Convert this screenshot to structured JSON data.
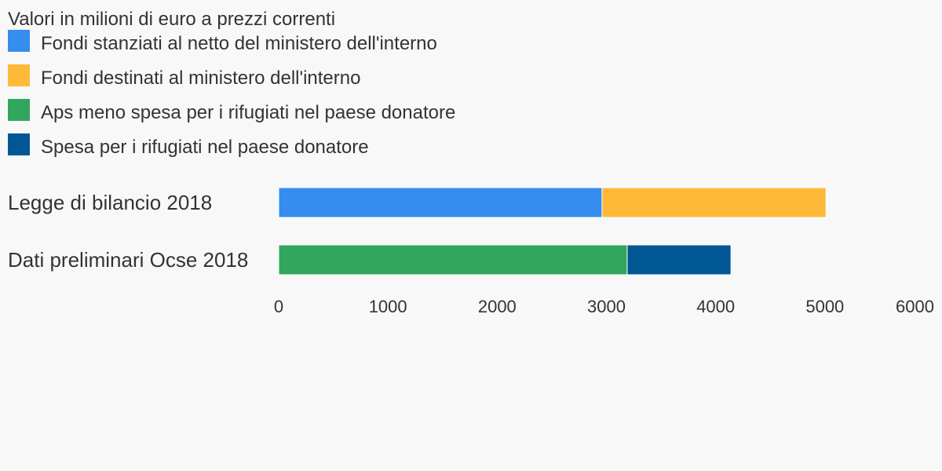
{
  "chart_data": {
    "type": "bar",
    "orientation": "horizontal",
    "stacked": true,
    "title": "Valori in milioni di euro a prezzi correnti",
    "categories": [
      "Legge di bilancio 2018",
      "Dati preliminari Ocse 2018"
    ],
    "series": [
      {
        "name": "Fondi stanziati al netto del ministero dell'interno",
        "color": "#348def",
        "values": [
          2960,
          0
        ]
      },
      {
        "name": "Fondi destinati al ministero dell'interno",
        "color": "#ffb938",
        "values": [
          2050,
          0
        ]
      },
      {
        "name": "Aps meno spesa per i rifugiati nel paese donatore",
        "color": "#31a65c",
        "values": [
          0,
          3190
        ]
      },
      {
        "name": "Spesa per i rifugiati nel paese donatore",
        "color": "#005794",
        "values": [
          0,
          950
        ]
      }
    ],
    "xlim": [
      0,
      6000
    ],
    "x_ticks": [
      "0",
      "1000",
      "2000",
      "3000",
      "4000",
      "5000",
      "6000"
    ],
    "grid": false,
    "legend_position": "top-left"
  }
}
